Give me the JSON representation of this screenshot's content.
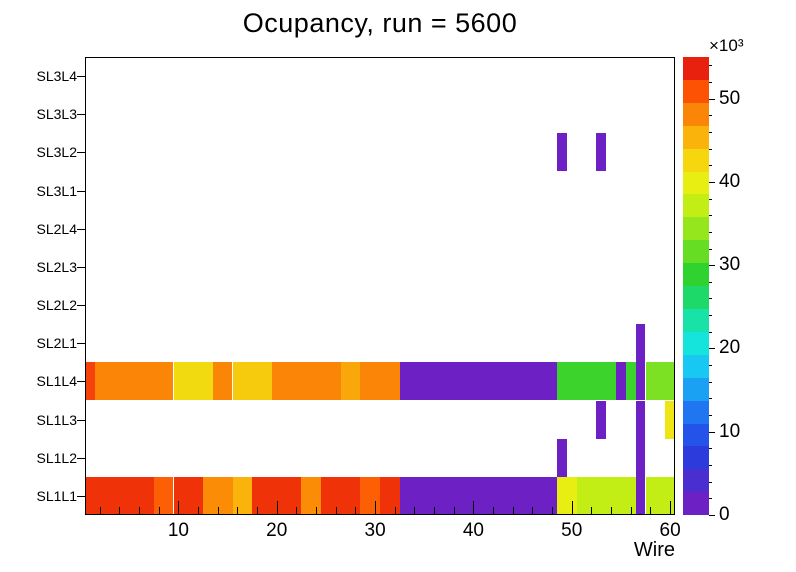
{
  "chart_data": {
    "type": "heatmap",
    "title": "Ocupancy, run = 5600",
    "xlabel": "Wire",
    "x_range": [
      0.5,
      60.5
    ],
    "x_major_ticks": [
      10,
      20,
      30,
      40,
      50,
      60
    ],
    "x_minor_step": 2,
    "rows_bottom_to_top": [
      "SL1L1",
      "SL1L2",
      "SL1L3",
      "SL1L4",
      "SL2L1",
      "SL2L2",
      "SL2L3",
      "SL2L4",
      "SL3L1",
      "SL3L2",
      "SL3L3",
      "SL3L4"
    ],
    "z_scale": {
      "label": "×10³",
      "min": 0,
      "max": 55,
      "ticks": [
        0,
        10,
        20,
        30,
        40,
        50
      ],
      "minor_step": 2
    },
    "palette": [
      "#6d20c4",
      "#4b2ed0",
      "#2b3bdc",
      "#2353e8",
      "#1f76f0",
      "#1ba1f4",
      "#17c9f2",
      "#14e4db",
      "#18e2a8",
      "#1cd969",
      "#30d230",
      "#66dd22",
      "#95e61c",
      "#c2ee16",
      "#e8ed12",
      "#f6d60e",
      "#f9b30a",
      "#fb8506",
      "#fd5104",
      "#e8210e"
    ],
    "empty_value": 0,
    "cells": [
      {
        "row": "SL1L1",
        "w1": 1,
        "w2": 7,
        "value_k": 54,
        "color": "#f03208"
      },
      {
        "row": "SL1L1",
        "w1": 8,
        "w2": 9,
        "value_k": 50,
        "color": "#fd5f04"
      },
      {
        "row": "SL1L1",
        "w1": 10,
        "w2": 12,
        "value_k": 53,
        "color": "#f03208"
      },
      {
        "row": "SL1L1",
        "w1": 13,
        "w2": 15,
        "value_k": 48,
        "color": "#fb8d06"
      },
      {
        "row": "SL1L1",
        "w1": 16,
        "w2": 17,
        "value_k": 45,
        "color": "#f9b30a"
      },
      {
        "row": "SL1L1",
        "w1": 18,
        "w2": 22,
        "value_k": 53,
        "color": "#f03208"
      },
      {
        "row": "SL1L1",
        "w1": 23,
        "w2": 24,
        "value_k": 48,
        "color": "#fb8d06"
      },
      {
        "row": "SL1L1",
        "w1": 25,
        "w2": 28,
        "value_k": 53,
        "color": "#f03208"
      },
      {
        "row": "SL1L1",
        "w1": 29,
        "w2": 30,
        "value_k": 49,
        "color": "#fd5f04"
      },
      {
        "row": "SL1L1",
        "w1": 31,
        "w2": 32,
        "value_k": 53,
        "color": "#f03208"
      },
      {
        "row": "SL1L1",
        "w1": 33,
        "w2": 48,
        "value_k": 2,
        "color": "#6d20c4"
      },
      {
        "row": "SL1L1",
        "w1": 49,
        "w2": 50,
        "value_k": 44,
        "color": "#e8ed12"
      },
      {
        "row": "SL1L1",
        "w1": 51,
        "w2": 56,
        "value_k": 42,
        "color": "#c2ee16"
      },
      {
        "row": "SL1L1",
        "w1": 57,
        "w2": 57,
        "value_k": 2,
        "color": "#6d20c4"
      },
      {
        "row": "SL1L1",
        "w1": 58,
        "w2": 60,
        "value_k": 42,
        "color": "#c2ee16"
      },
      {
        "row": "SL1L2",
        "w1": 49,
        "w2": 49,
        "value_k": 3,
        "color": "#6d20c4"
      },
      {
        "row": "SL1L2",
        "w1": 57,
        "w2": 57,
        "value_k": 3,
        "color": "#6d20c4"
      },
      {
        "row": "SL1L3",
        "w1": 53,
        "w2": 53,
        "value_k": 3,
        "color": "#6d20c4"
      },
      {
        "row": "SL1L3",
        "w1": 57,
        "w2": 57,
        "value_k": 3,
        "color": "#6d20c4"
      },
      {
        "row": "SL1L3",
        "w1": 60,
        "w2": 60,
        "value_k": 44,
        "color": "#eee512"
      },
      {
        "row": "SL1L4",
        "w1": 1,
        "w2": 1,
        "value_k": 52,
        "color": "#f5420a"
      },
      {
        "row": "SL1L4",
        "w1": 2,
        "w2": 9,
        "value_k": 47,
        "color": "#fb8506"
      },
      {
        "row": "SL1L4",
        "w1": 10,
        "w2": 13,
        "value_k": 43,
        "color": "#f2da10"
      },
      {
        "row": "SL1L4",
        "w1": 14,
        "w2": 15,
        "value_k": 47,
        "color": "#fb8506"
      },
      {
        "row": "SL1L4",
        "w1": 16,
        "w2": 19,
        "value_k": 44,
        "color": "#f6cb0e"
      },
      {
        "row": "SL1L4",
        "w1": 20,
        "w2": 26,
        "value_k": 47,
        "color": "#fb8506"
      },
      {
        "row": "SL1L4",
        "w1": 27,
        "w2": 28,
        "value_k": 45,
        "color": "#f9a70a"
      },
      {
        "row": "SL1L4",
        "w1": 29,
        "w2": 32,
        "value_k": 47,
        "color": "#fb8506"
      },
      {
        "row": "SL1L4",
        "w1": 33,
        "w2": 48,
        "value_k": 2,
        "color": "#6d20c4"
      },
      {
        "row": "SL1L4",
        "w1": 49,
        "w2": 54,
        "value_k": 32,
        "color": "#3cd42c"
      },
      {
        "row": "SL1L4",
        "w1": 55,
        "w2": 55,
        "value_k": 3,
        "color": "#6d20c4"
      },
      {
        "row": "SL1L4",
        "w1": 56,
        "w2": 56,
        "value_k": 32,
        "color": "#3cd42c"
      },
      {
        "row": "SL1L4",
        "w1": 57,
        "w2": 57,
        "value_k": 3,
        "color": "#6d20c4"
      },
      {
        "row": "SL1L4",
        "w1": 58,
        "w2": 60,
        "value_k": 36,
        "color": "#7ce122"
      },
      {
        "row": "SL2L1",
        "w1": 57,
        "w2": 57,
        "value_k": 3,
        "color": "#6d20c4"
      },
      {
        "row": "SL3L2",
        "w1": 49,
        "w2": 49,
        "value_k": 3,
        "color": "#6d20c4"
      },
      {
        "row": "SL3L2",
        "w1": 53,
        "w2": 53,
        "value_k": 3,
        "color": "#6d20c4"
      }
    ]
  }
}
